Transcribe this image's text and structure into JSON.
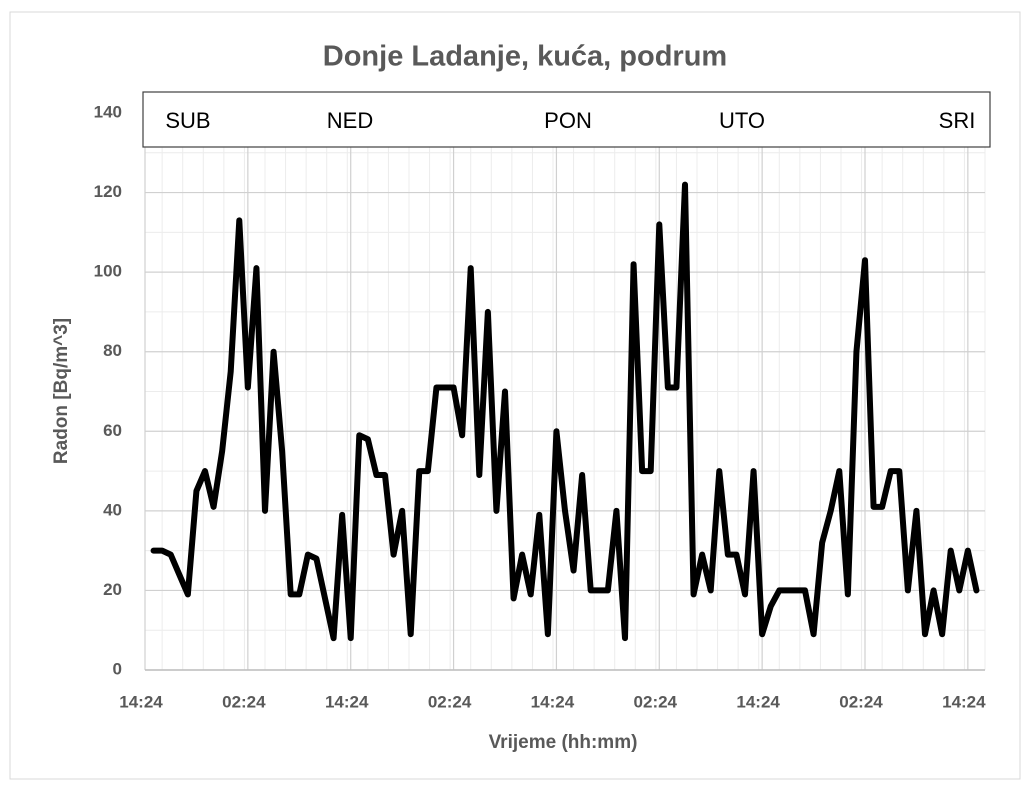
{
  "chart_data": {
    "type": "line",
    "title": "Donje Ladanje, kuća, podrum",
    "xlabel": "Vrijeme (hh:mm)",
    "ylabel": "Radon [Bq/m^3]",
    "annotations": [
      "SUB",
      "NED",
      "PON",
      "UTO",
      "SRI"
    ],
    "categories": [
      "14:24",
      null,
      null,
      null,
      null,
      null,
      null,
      null,
      null,
      null,
      null,
      null,
      "02:24",
      null,
      null,
      null,
      null,
      null,
      null,
      null,
      null,
      null,
      null,
      null,
      "14:24",
      null,
      null,
      null,
      null,
      null,
      null,
      null,
      null,
      null,
      null,
      null,
      "02:24",
      null,
      null,
      null,
      null,
      null,
      null,
      null,
      null,
      null,
      null,
      null,
      "14:24",
      null,
      null,
      null,
      null,
      null,
      null,
      null,
      null,
      null,
      null,
      null,
      "02:24",
      null,
      null,
      null,
      null,
      null,
      null,
      null,
      null,
      null,
      null,
      null,
      "14:24",
      null,
      null,
      null,
      null,
      null,
      null,
      null,
      null,
      null,
      null,
      null,
      "02:24",
      null,
      null,
      null,
      null,
      null,
      null,
      null,
      null,
      null,
      null,
      null,
      "14:24",
      null,
      null
    ],
    "series": [
      {
        "name": "Radon",
        "color": "#000000",
        "values": [
          null,
          30,
          30,
          29,
          24,
          19,
          45,
          50,
          41,
          55,
          75,
          113,
          71,
          101,
          40,
          80,
          55,
          19,
          19,
          29,
          28,
          18,
          8,
          39,
          8,
          59,
          58,
          49,
          49,
          29,
          40,
          9,
          50,
          50,
          71,
          71,
          71,
          59,
          101,
          49,
          90,
          40,
          70,
          18,
          29,
          19,
          39,
          9,
          60,
          40,
          25,
          49,
          20,
          20,
          20,
          40,
          8,
          102,
          50,
          50,
          112,
          71,
          71,
          122,
          19,
          29,
          20,
          50,
          29,
          29,
          19,
          50,
          9,
          16,
          20,
          20,
          20,
          20,
          9,
          32,
          40,
          50,
          19,
          80,
          103,
          41,
          41,
          50,
          50,
          20,
          40,
          9,
          20,
          9,
          30,
          20,
          30,
          20,
          null
        ]
      }
    ],
    "ylim": [
      0,
      140
    ],
    "yticks": [
      0,
      20,
      40,
      60,
      80,
      100,
      120,
      140
    ],
    "grid": true
  }
}
